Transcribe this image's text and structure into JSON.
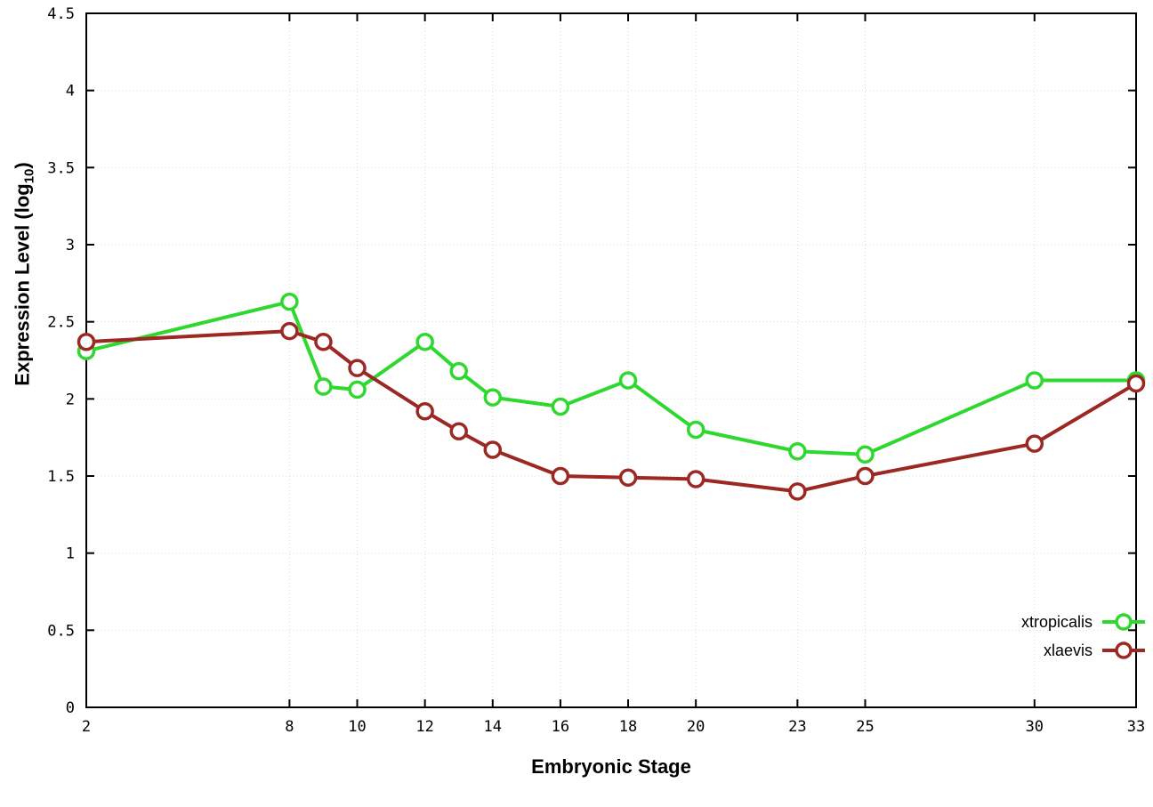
{
  "chart_data": {
    "type": "line",
    "x": [
      2,
      8,
      9,
      10,
      12,
      13,
      14,
      16,
      18,
      20,
      23,
      25,
      30,
      33
    ],
    "series": [
      {
        "name": "xtropicalis",
        "color": "#2fd82f",
        "values": [
          2.31,
          2.63,
          2.08,
          2.06,
          2.37,
          2.18,
          2.01,
          1.95,
          2.12,
          1.8,
          1.66,
          1.64,
          2.12,
          2.12
        ]
      },
      {
        "name": "xlaevis",
        "color": "#9c2823",
        "values": [
          2.37,
          2.44,
          2.37,
          2.2,
          1.92,
          1.79,
          1.67,
          1.5,
          1.49,
          1.48,
          1.4,
          1.5,
          1.71,
          2.1
        ]
      }
    ],
    "title": "",
    "xlabel": "Embryonic Stage",
    "ylabel": "Expression Level (log10)",
    "ylabel_parts": {
      "prefix": "Expression Level (log",
      "sub": "10",
      "suffix": ")"
    },
    "xlim": [
      2,
      33
    ],
    "ylim": [
      0,
      4.5
    ],
    "xticks": [
      2,
      8,
      10,
      12,
      14,
      16,
      18,
      20,
      23,
      25,
      30,
      33
    ],
    "yticks": [
      0,
      0.5,
      1,
      1.5,
      2,
      2.5,
      3,
      3.5,
      4,
      4.5
    ],
    "grid": true,
    "grid_color": "#dcdcdc",
    "border_color": "#000000",
    "marker": "open-circle",
    "legend_position": "bottom-right"
  }
}
